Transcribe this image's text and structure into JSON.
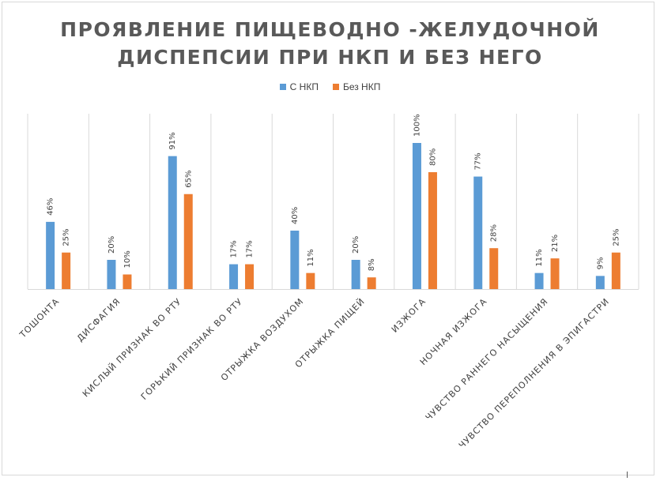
{
  "chart_data": {
    "type": "bar",
    "title_lines": [
      "ПРОЯВЛЕНИЕ ПИЩЕВОДНО -ЖЕЛУДОЧНОЙ",
      "ДИСПЕПСИИ ПРИ НКП И БЕЗ НЕГО"
    ],
    "categories": [
      "ТОШОНТА",
      "ДИСФАГИЯ",
      "КИСЛЫЙ ПРИЗНАК ВО РТУ",
      "ГОРЬКИЙ ПРИЗНАК ВО РТУ",
      "ОТРЫЖКА ВОЗДУХОМ",
      "ОТРЫЖКА ПИЩЕЙ",
      "ИЗЖОГА",
      "НОЧНАЯ ИЗЖОГА",
      "ЧУВСТВО РАННЕГО НАСЫЩЕНИЯ",
      "ЧУВСТВО ПЕРЕПОЛНЕНИЯ В ЭПИГАСТРИ"
    ],
    "series": [
      {
        "name": "С НКП",
        "color": "#5b9bd5",
        "values": [
          46,
          20,
          91,
          17,
          40,
          20,
          100,
          77,
          11,
          9
        ]
      },
      {
        "name": "Без НКП",
        "color": "#ed7d31",
        "values": [
          25,
          10,
          65,
          17,
          11,
          8,
          80,
          28,
          21,
          25
        ]
      }
    ],
    "value_suffix": "%",
    "ylim": [
      0,
      100
    ],
    "grid": false,
    "legend_position": "top"
  }
}
